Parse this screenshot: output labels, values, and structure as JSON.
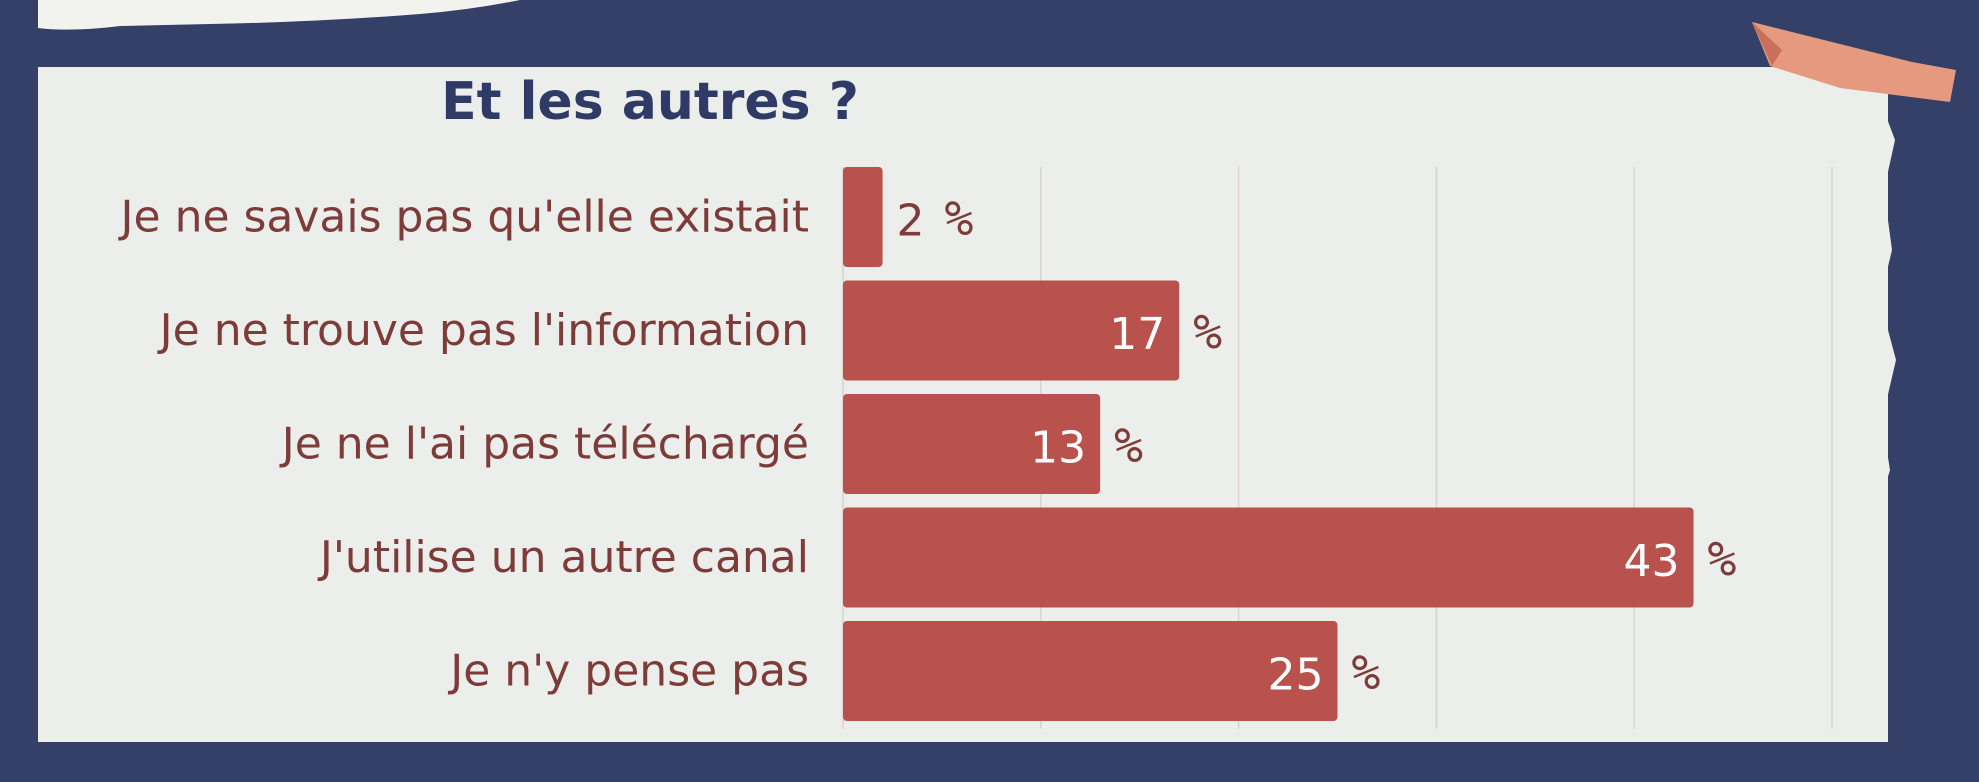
{
  "colors": {
    "background": "#354069",
    "paper": "#eceeeb",
    "bar": "#b9514c",
    "label": "#7d3b39",
    "title": "#2f3b66",
    "tape": "#e59a80",
    "gridline": "#d7d3cf"
  },
  "chart_data": {
    "type": "bar",
    "orientation": "horizontal",
    "title": "Et les autres ?",
    "categories": [
      "Je ne savais pas qu'elle existait",
      "Je ne trouve pas l'information",
      "Je ne l'ai pas téléchargé",
      "J'utilise un autre canal",
      "Je n'y pense pas"
    ],
    "values": [
      2,
      17,
      13,
      43,
      25
    ],
    "value_labels": [
      "2",
      "17",
      "13",
      "43",
      "25"
    ],
    "unit": "%",
    "xlim": [
      0,
      50
    ],
    "grid": true,
    "legend": "none"
  }
}
